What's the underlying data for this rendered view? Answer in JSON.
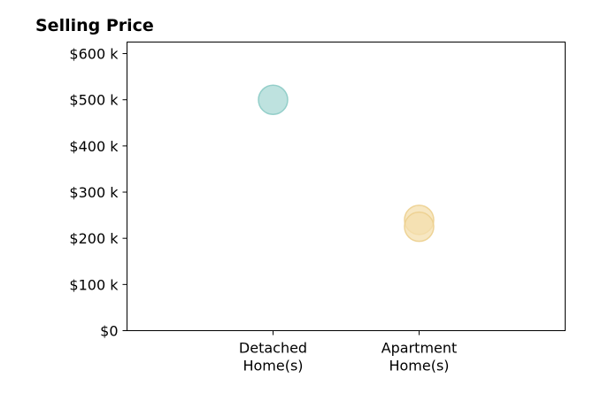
{
  "chart_data": {
    "type": "scatter",
    "title": "Selling Price",
    "xlabel": "",
    "ylabel": "",
    "categories": [
      [
        "Detached",
        "Home(s)"
      ],
      [
        "Apartment",
        "Home(s)"
      ]
    ],
    "xlim": [
      -1,
      2
    ],
    "ylim": [
      0,
      625000
    ],
    "yticks": [
      0,
      100000,
      200000,
      300000,
      400000,
      500000,
      600000
    ],
    "ytick_labels": [
      "$0",
      "$100 k",
      "$200 k",
      "$300 k",
      "$400 k",
      "$500 k",
      "$600 k"
    ],
    "grid": false,
    "points": [
      {
        "category_index": 0,
        "value": 500000,
        "color": "#a8d8d4"
      },
      {
        "category_index": 1,
        "value": 240000,
        "color": "#f4dfae"
      },
      {
        "category_index": 1,
        "value": 225000,
        "color": "#f4dfae"
      }
    ],
    "colors": {
      "detached": "#a8d8d4",
      "apartment": "#f4dfae",
      "detached_edge": "#8ccbc5",
      "apartment_edge": "#eccf8e"
    }
  }
}
